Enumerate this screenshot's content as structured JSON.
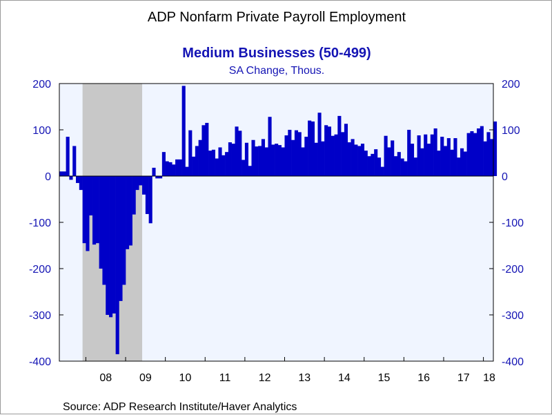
{
  "chart_data": {
    "type": "bar",
    "title": "ADP Nonfarm Private Payroll Employment",
    "subtitle": "Medium Businesses (50-499)",
    "units": "SA Change, Thous.",
    "source": "Source:  ADP Research Institute/Haver Analytics",
    "ylim": [
      -400,
      200
    ],
    "yticks": [
      -400,
      -300,
      -200,
      -100,
      0,
      100,
      200
    ],
    "xlim": [
      "2007-05",
      "2018-03"
    ],
    "xtick_labels": [
      "08",
      "09",
      "10",
      "11",
      "12",
      "13",
      "14",
      "15",
      "16",
      "17",
      "18"
    ],
    "recession": [
      "2007-12",
      "2009-06"
    ],
    "colors": {
      "bar": "#0000c8",
      "plot_bg": "#f0f5ff",
      "recession": "#c8c8c8",
      "text": "#1414b4"
    },
    "grid": false,
    "legend": "none",
    "start": "2007-05",
    "values": [
      10,
      10,
      85,
      -8,
      65,
      -15,
      -30,
      -145,
      -162,
      -85,
      -148,
      -145,
      -200,
      -235,
      -300,
      -305,
      -297,
      -385,
      -270,
      -235,
      -158,
      -150,
      -83,
      -30,
      -20,
      -40,
      -82,
      -102,
      18,
      -5,
      -5,
      52,
      32,
      30,
      25,
      36,
      36,
      195,
      20,
      99,
      42,
      65,
      78,
      110,
      115,
      55,
      57,
      38,
      62,
      45,
      52,
      73,
      70,
      107,
      98,
      35,
      72,
      22,
      78,
      64,
      65,
      80,
      62,
      128,
      68,
      70,
      67,
      62,
      88,
      100,
      78,
      99,
      95,
      62,
      85,
      120,
      118,
      72,
      137,
      75,
      110,
      107,
      87,
      90,
      130,
      95,
      113,
      73,
      80,
      68,
      65,
      70,
      55,
      43,
      48,
      58,
      40,
      20,
      87,
      62,
      77,
      43,
      52,
      38,
      32,
      100,
      70,
      40,
      88,
      60,
      90,
      70,
      90,
      103,
      55,
      85,
      65,
      82,
      57,
      82,
      40,
      60,
      53,
      93,
      97,
      93,
      103,
      108,
      75,
      95,
      80,
      118
    ]
  }
}
